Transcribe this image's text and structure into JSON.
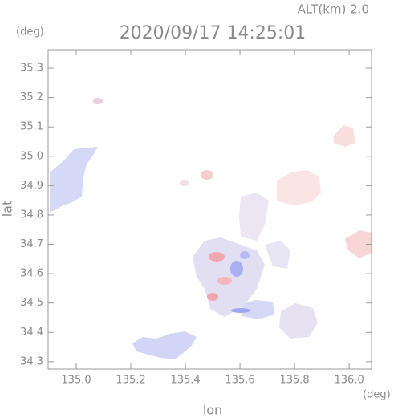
{
  "header": {
    "altitude": "ALT(km) 2.0",
    "timestamp": "2020/09/17 14:25:01"
  },
  "chart_data": {
    "type": "map",
    "x_label": "lon",
    "y_label": "lat",
    "x_unit": "(deg)",
    "y_unit": "(deg)",
    "xlim": [
      134.897,
      136.082
    ],
    "ylim": [
      34.275,
      35.363
    ],
    "xticks": [
      {
        "value": 135,
        "label": "135.0"
      },
      135.2,
      135.4,
      135.6,
      135.8,
      {
        "value": 136,
        "label": "136.0"
      }
    ],
    "yticks": [
      34.3,
      34.4,
      34.5,
      34.6,
      34.7,
      34.8,
      34.9,
      {
        "value": 35,
        "label": "35.0"
      },
      35.1,
      35.2,
      35.3
    ]
  }
}
